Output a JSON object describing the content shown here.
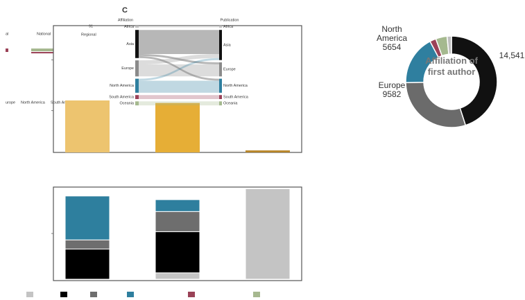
{
  "chart_data": [
    {
      "type": "bar",
      "categories": [
        null,
        null,
        null
      ],
      "values": [
        41,
        39,
        1.6
      ],
      "colors": [
        "#edc46f",
        "#e6ae36",
        "#b8862a"
      ],
      "ylim": [
        0,
        100
      ],
      "yticks": [
        33,
        73
      ]
    },
    {
      "type": "sankey",
      "title": "C",
      "left_label": "Affiliation",
      "right_label": "Publication",
      "left_nodes": [
        "Africa",
        "Asia",
        "Europe",
        "North America",
        "South America",
        "Oceania"
      ],
      "left_values": [
        1,
        14,
        8,
        7,
        2,
        2
      ],
      "right_nodes": [
        "Africa",
        "Asia",
        "Europe",
        "North America",
        "South America",
        "Oceania"
      ],
      "right_values": [
        1,
        15,
        7,
        7,
        2,
        2
      ],
      "colors": [
        "#bdbdbd",
        "#111111",
        "#8a8a8a",
        "#2f7f9f",
        "#9b4259",
        "#a5b98f"
      ],
      "links": [
        {
          "source": 0,
          "target": 0,
          "value": 1
        },
        {
          "source": 1,
          "target": 1,
          "value": 12
        },
        {
          "source": 1,
          "target": 2,
          "value": 1
        },
        {
          "source": 1,
          "target": 3,
          "value": 1
        },
        {
          "source": 2,
          "target": 1,
          "value": 2
        },
        {
          "source": 2,
          "target": 2,
          "value": 6
        },
        {
          "source": 3,
          "target": 1,
          "value": 1
        },
        {
          "source": 3,
          "target": 3,
          "value": 6
        },
        {
          "source": 4,
          "target": 4,
          "value": 2
        },
        {
          "source": 5,
          "target": 5,
          "value": 2
        }
      ]
    },
    {
      "type": "stacked_bar",
      "categories": [
        null,
        null,
        null
      ],
      "ylim": [
        0,
        100
      ],
      "yticks": [
        50
      ],
      "series": [
        {
          "name": null,
          "color": "#c4c4c4",
          "values": [
            0,
            7,
            99
          ]
        },
        {
          "name": null,
          "color": "#000000",
          "values": [
            33,
            45,
            0
          ]
        },
        {
          "name": null,
          "color": "#6e6e6e",
          "values": [
            10,
            22,
            0
          ]
        },
        {
          "name": null,
          "color": "#2e7f9e",
          "values": [
            48,
            13,
            0
          ]
        },
        {
          "name": null,
          "color": "#9a4257",
          "values": [
            0,
            0,
            0
          ]
        },
        {
          "name": null,
          "color": "#a6b88f",
          "values": [
            0,
            0,
            0
          ]
        }
      ]
    },
    {
      "type": "pie",
      "title": "Affiliation of first author",
      "categories": [
        null,
        "Europe",
        "North America",
        null,
        null,
        null
      ],
      "values": [
        14541,
        9582,
        5654,
        711,
        1300,
        500
      ],
      "value_labels": [
        "14,541",
        null,
        null,
        null,
        null,
        null
      ],
      "colors": [
        "#111111",
        "#6b6b6b",
        "#2f7f9f",
        "#9b4259",
        "#a5b98f",
        "#c0c0c0"
      ]
    }
  ],
  "fragment_labels": [
    "al",
    "National",
    "91",
    "Regional",
    "urope",
    "North America",
    "South America",
    "Oceania"
  ]
}
